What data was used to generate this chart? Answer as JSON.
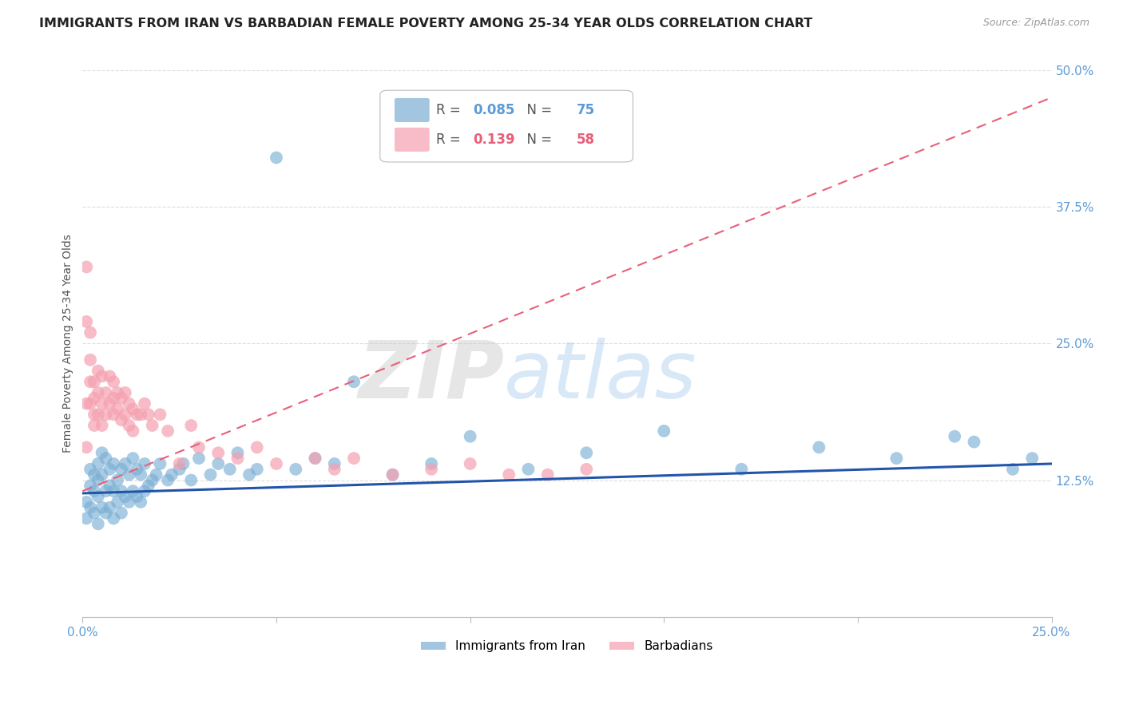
{
  "title": "IMMIGRANTS FROM IRAN VS BARBADIAN FEMALE POVERTY AMONG 25-34 YEAR OLDS CORRELATION CHART",
  "source": "Source: ZipAtlas.com",
  "ylabel": "Female Poverty Among 25-34 Year Olds",
  "xlim": [
    0.0,
    0.25
  ],
  "ylim": [
    0.0,
    0.5
  ],
  "xticks": [
    0.0,
    0.05,
    0.1,
    0.15,
    0.2,
    0.25
  ],
  "xticklabels": [
    "0.0%",
    "",
    "",
    "",
    "",
    "25.0%"
  ],
  "yticks_right": [
    0.0,
    0.125,
    0.25,
    0.375,
    0.5
  ],
  "yticklabels_right": [
    "",
    "12.5%",
    "25.0%",
    "37.5%",
    "50.0%"
  ],
  "blue_color": "#7BAFD4",
  "pink_color": "#F5A0B0",
  "blue_line_color": "#2255AA",
  "pink_line_color": "#E8607A",
  "legend_R_blue": "0.085",
  "legend_N_blue": "75",
  "legend_R_pink": "0.139",
  "legend_N_pink": "58",
  "legend_label_blue": "Immigrants from Iran",
  "legend_label_pink": "Barbadians",
  "blue_scatter_x": [
    0.001,
    0.001,
    0.002,
    0.002,
    0.002,
    0.003,
    0.003,
    0.003,
    0.004,
    0.004,
    0.004,
    0.004,
    0.005,
    0.005,
    0.005,
    0.006,
    0.006,
    0.006,
    0.007,
    0.007,
    0.007,
    0.008,
    0.008,
    0.008,
    0.009,
    0.009,
    0.01,
    0.01,
    0.01,
    0.011,
    0.011,
    0.012,
    0.012,
    0.013,
    0.013,
    0.014,
    0.014,
    0.015,
    0.015,
    0.016,
    0.016,
    0.017,
    0.018,
    0.019,
    0.02,
    0.022,
    0.023,
    0.025,
    0.026,
    0.028,
    0.03,
    0.033,
    0.035,
    0.038,
    0.04,
    0.043,
    0.045,
    0.05,
    0.055,
    0.06,
    0.065,
    0.07,
    0.08,
    0.09,
    0.1,
    0.115,
    0.13,
    0.15,
    0.17,
    0.19,
    0.21,
    0.225,
    0.23,
    0.24,
    0.245
  ],
  "blue_scatter_y": [
    0.105,
    0.09,
    0.12,
    0.135,
    0.1,
    0.13,
    0.115,
    0.095,
    0.14,
    0.11,
    0.125,
    0.085,
    0.15,
    0.13,
    0.1,
    0.145,
    0.115,
    0.095,
    0.135,
    0.12,
    0.1,
    0.14,
    0.115,
    0.09,
    0.125,
    0.105,
    0.135,
    0.115,
    0.095,
    0.14,
    0.11,
    0.13,
    0.105,
    0.145,
    0.115,
    0.135,
    0.11,
    0.13,
    0.105,
    0.14,
    0.115,
    0.12,
    0.125,
    0.13,
    0.14,
    0.125,
    0.13,
    0.135,
    0.14,
    0.125,
    0.145,
    0.13,
    0.14,
    0.135,
    0.15,
    0.13,
    0.135,
    0.42,
    0.135,
    0.145,
    0.14,
    0.215,
    0.13,
    0.14,
    0.165,
    0.135,
    0.15,
    0.17,
    0.135,
    0.155,
    0.145,
    0.165,
    0.16,
    0.135,
    0.145
  ],
  "pink_scatter_x": [
    0.001,
    0.001,
    0.001,
    0.001,
    0.002,
    0.002,
    0.002,
    0.002,
    0.003,
    0.003,
    0.003,
    0.003,
    0.004,
    0.004,
    0.004,
    0.005,
    0.005,
    0.005,
    0.006,
    0.006,
    0.007,
    0.007,
    0.008,
    0.008,
    0.008,
    0.009,
    0.009,
    0.01,
    0.01,
    0.011,
    0.011,
    0.012,
    0.012,
    0.013,
    0.013,
    0.014,
    0.015,
    0.016,
    0.017,
    0.018,
    0.02,
    0.022,
    0.025,
    0.028,
    0.03,
    0.035,
    0.04,
    0.045,
    0.05,
    0.06,
    0.065,
    0.07,
    0.08,
    0.09,
    0.1,
    0.11,
    0.12,
    0.13
  ],
  "pink_scatter_y": [
    0.32,
    0.27,
    0.195,
    0.155,
    0.26,
    0.235,
    0.215,
    0.195,
    0.215,
    0.2,
    0.185,
    0.175,
    0.225,
    0.205,
    0.185,
    0.22,
    0.195,
    0.175,
    0.205,
    0.185,
    0.22,
    0.195,
    0.215,
    0.2,
    0.185,
    0.205,
    0.19,
    0.2,
    0.18,
    0.205,
    0.185,
    0.195,
    0.175,
    0.19,
    0.17,
    0.185,
    0.185,
    0.195,
    0.185,
    0.175,
    0.185,
    0.17,
    0.14,
    0.175,
    0.155,
    0.15,
    0.145,
    0.155,
    0.14,
    0.145,
    0.135,
    0.145,
    0.13,
    0.135,
    0.14,
    0.13,
    0.13,
    0.135
  ],
  "blue_trend_x": [
    0.0,
    0.25
  ],
  "blue_trend_y": [
    0.113,
    0.14
  ],
  "pink_trend_x": [
    0.0,
    0.25
  ],
  "pink_trend_y": [
    0.115,
    0.475
  ],
  "watermark_zip": "ZIP",
  "watermark_atlas": "atlas",
  "background_color": "#FFFFFF",
  "grid_color": "#DDDDDD",
  "title_color": "#222222",
  "axis_label_color": "#555555",
  "right_tick_color": "#5B9BD5",
  "bottom_tick_color": "#5B9BD5"
}
